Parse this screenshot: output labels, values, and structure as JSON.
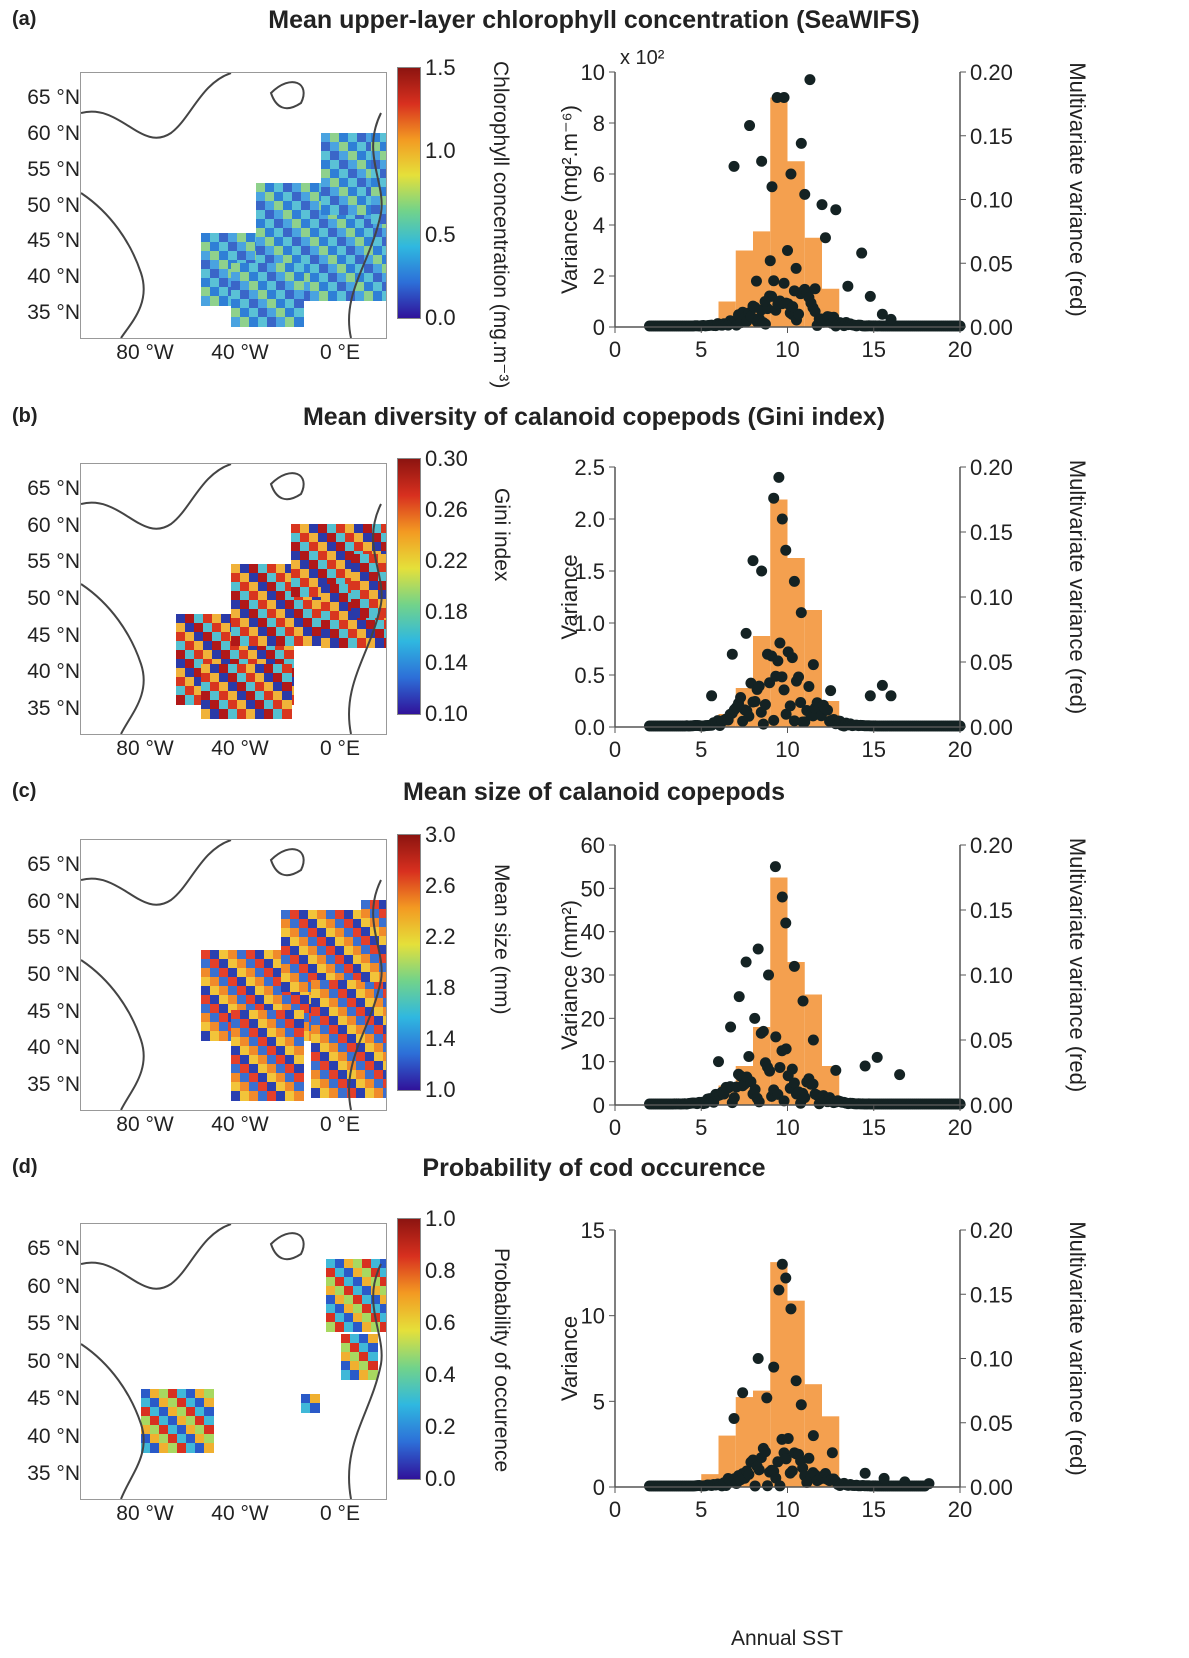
{
  "figure": {
    "x_caption": "Annual SST"
  },
  "colors": {
    "bar": "#f4a04f",
    "dot": "#142223",
    "axis": "#555555",
    "land": "#ffffff"
  },
  "panels": [
    {
      "letter": "(a)",
      "title": "Mean upper-layer chlorophyll concentration (SeaWIFS)",
      "map": {
        "lat_labels": [
          "65 °N",
          "60 °N",
          "55 °N",
          "50 °N",
          "45 °N",
          "40 °N",
          "35 °N"
        ],
        "lon_labels": [
          "80 °W",
          "40 °W",
          "0 °E"
        ],
        "colorbar": {
          "ticks": [
            "1.5",
            "1.0",
            "0.5",
            "0.0"
          ],
          "label": "Chlorophyll concentration (mg.m⁻³)"
        }
      }
    },
    {
      "letter": "(b)",
      "title": "Mean diversity of calanoid copepods (Gini index)",
      "map": {
        "lat_labels": [
          "65 °N",
          "60 °N",
          "55 °N",
          "50 °N",
          "45 °N",
          "40 °N",
          "35 °N"
        ],
        "lon_labels": [
          "80 °W",
          "40 °W",
          "0 °E"
        ],
        "colorbar": {
          "ticks": [
            "0.30",
            "0.26",
            "0.22",
            "0.18",
            "0.14",
            "0.10"
          ],
          "label": "Gini index"
        }
      }
    },
    {
      "letter": "(c)",
      "title": "Mean size of calanoid copepods",
      "map": {
        "lat_labels": [
          "65 °N",
          "60 °N",
          "55 °N",
          "50 °N",
          "45 °N",
          "40 °N",
          "35 °N"
        ],
        "lon_labels": [
          "80 °W",
          "40 °W",
          "0 °E"
        ],
        "colorbar": {
          "ticks": [
            "3.0",
            "2.6",
            "2.2",
            "1.8",
            "1.4",
            "1.0"
          ],
          "label": "Mean size (mm)"
        }
      }
    },
    {
      "letter": "(d)",
      "title": "Probability of cod occurence",
      "map": {
        "lat_labels": [
          "65 °N",
          "60 °N",
          "55 °N",
          "50 °N",
          "45 °N",
          "40 °N",
          "35 °N"
        ],
        "lon_labels": [
          "80 °W",
          "40 °W",
          "0 °E"
        ],
        "colorbar": {
          "ticks": [
            "1.0",
            "0.8",
            "0.6",
            "0.4",
            "0.2",
            "0.0"
          ],
          "label": "Probability of occurence"
        }
      }
    }
  ],
  "chart_data": [
    {
      "type": "bar",
      "panel": "(a)",
      "ylabel": "Variance (mg².m⁻⁶)",
      "y_multiplier": "x 10²",
      "y2label": "Multivariate variance (red)",
      "xlim": [
        0,
        20
      ],
      "ylim": [
        0,
        10
      ],
      "y2lim": [
        0,
        0.2
      ],
      "xticks": [
        "0",
        "5",
        "10",
        "15",
        "20"
      ],
      "yticks": [
        "0",
        "2",
        "4",
        "6",
        "8",
        "10"
      ],
      "y2ticks": [
        "0.00",
        "0.05",
        "0.10",
        "0.15",
        "0.20"
      ],
      "bins": [
        [
          6,
          7,
          0.02
        ],
        [
          7,
          8,
          0.06
        ],
        [
          8,
          9,
          0.075
        ],
        [
          9,
          10,
          0.18
        ],
        [
          10,
          11,
          0.13
        ],
        [
          11,
          12,
          0.07
        ],
        [
          12,
          13,
          0.03
        ]
      ],
      "dots": [
        [
          6.9,
          6.3
        ],
        [
          7.8,
          7.9
        ],
        [
          8.5,
          6.5
        ],
        [
          9.1,
          5.5
        ],
        [
          9.4,
          9.0
        ],
        [
          9.8,
          9.0
        ],
        [
          10.2,
          6.0
        ],
        [
          10.8,
          7.2
        ],
        [
          11.3,
          9.7
        ],
        [
          11.0,
          5.2
        ],
        [
          12.0,
          4.8
        ],
        [
          12.8,
          4.6
        ],
        [
          12.2,
          3.5
        ],
        [
          14.3,
          2.9
        ],
        [
          14.8,
          1.2
        ],
        [
          15.5,
          0.5
        ],
        [
          13.5,
          1.6
        ],
        [
          8.2,
          1.8
        ],
        [
          9.0,
          2.6
        ],
        [
          10.0,
          3.0
        ],
        [
          10.5,
          2.3
        ],
        [
          11.6,
          1.5
        ],
        [
          8.7,
          1.0
        ],
        [
          10.3,
          0.8
        ],
        [
          16.0,
          0.3
        ]
      ],
      "dot_band": {
        "x_from": 2,
        "x_to": 20,
        "peak_x": 9.8,
        "peak_y": 2.0
      }
    },
    {
      "type": "bar",
      "panel": "(b)",
      "ylabel": "Variance",
      "y2label": "Multivariate variance (red)",
      "xlim": [
        0,
        20
      ],
      "ylim": [
        0,
        2.5
      ],
      "y2lim": [
        0,
        0.2
      ],
      "xticks": [
        "0",
        "5",
        "10",
        "15",
        "20"
      ],
      "yticks": [
        "0.0",
        "0.5",
        "1.0",
        "1.5",
        "2.0",
        "2.5"
      ],
      "y2ticks": [
        "0.00",
        "0.05",
        "0.10",
        "0.15",
        "0.20"
      ],
      "bins": [
        [
          6,
          7,
          0.01
        ],
        [
          7,
          8,
          0.03
        ],
        [
          8,
          9,
          0.07
        ],
        [
          9,
          10,
          0.175
        ],
        [
          10,
          11,
          0.13
        ],
        [
          11,
          12,
          0.09
        ],
        [
          12,
          13,
          0.02
        ]
      ],
      "dots": [
        [
          9.5,
          2.4
        ],
        [
          9.2,
          2.2
        ],
        [
          9.7,
          2.0
        ],
        [
          8.0,
          1.6
        ],
        [
          8.5,
          1.5
        ],
        [
          10.4,
          1.4
        ],
        [
          10.8,
          1.1
        ],
        [
          7.6,
          0.9
        ],
        [
          6.8,
          0.7
        ],
        [
          11.5,
          0.6
        ],
        [
          15.5,
          0.4
        ],
        [
          14.8,
          0.3
        ],
        [
          16.0,
          0.3
        ],
        [
          12.5,
          0.35
        ],
        [
          5.6,
          0.3
        ],
        [
          9.9,
          1.7
        ]
      ],
      "dot_band": {
        "x_from": 2,
        "x_to": 20,
        "peak_x": 9.5,
        "peak_y": 0.8
      }
    },
    {
      "type": "bar",
      "panel": "(c)",
      "ylabel": "Variance (mm²)",
      "y2label": "Multivariate variance (red)",
      "xlim": [
        0,
        20
      ],
      "ylim": [
        0,
        60
      ],
      "y2lim": [
        0,
        0.2
      ],
      "xticks": [
        "0",
        "5",
        "10",
        "15",
        "20"
      ],
      "yticks": [
        "0",
        "10",
        "20",
        "30",
        "40",
        "50",
        "60"
      ],
      "y2ticks": [
        "0.00",
        "0.05",
        "0.10",
        "0.15",
        "0.20"
      ],
      "bins": [
        [
          5,
          6,
          0.005
        ],
        [
          6,
          7,
          0.015
        ],
        [
          7,
          8,
          0.03
        ],
        [
          8,
          9,
          0.06
        ],
        [
          9,
          10,
          0.175
        ],
        [
          10,
          11,
          0.11
        ],
        [
          11,
          12,
          0.085
        ],
        [
          12,
          13,
          0.03
        ]
      ],
      "dots": [
        [
          9.3,
          55
        ],
        [
          9.7,
          48
        ],
        [
          9.9,
          42
        ],
        [
          8.3,
          36
        ],
        [
          7.6,
          33
        ],
        [
          8.9,
          30
        ],
        [
          10.4,
          32
        ],
        [
          10.9,
          24
        ],
        [
          6.7,
          18
        ],
        [
          11.5,
          15
        ],
        [
          15.2,
          11
        ],
        [
          14.5,
          9
        ],
        [
          16.5,
          7
        ],
        [
          12.8,
          8
        ],
        [
          6.0,
          10
        ],
        [
          7.2,
          25
        ],
        [
          8.1,
          20
        ]
      ],
      "dot_band": {
        "x_from": 2,
        "x_to": 20,
        "peak_x": 9.0,
        "peak_y": 18
      }
    },
    {
      "type": "bar",
      "panel": "(d)",
      "ylabel": "Variance",
      "y2label": "Multivariate variance (red)",
      "xlim": [
        0,
        20
      ],
      "ylim": [
        0,
        15
      ],
      "y2lim": [
        0,
        0.2
      ],
      "xticks": [
        "0",
        "5",
        "10",
        "15",
        "20"
      ],
      "yticks": [
        "0",
        "5",
        "10",
        "15"
      ],
      "y2ticks": [
        "0.00",
        "0.05",
        "0.10",
        "0.15",
        "0.20"
      ],
      "bins": [
        [
          5,
          6,
          0.01
        ],
        [
          6,
          7,
          0.04
        ],
        [
          7,
          8,
          0.07
        ],
        [
          8,
          9,
          0.075
        ],
        [
          9,
          10,
          0.175
        ],
        [
          10,
          11,
          0.145
        ],
        [
          11,
          12,
          0.08
        ],
        [
          12,
          13,
          0.055
        ],
        [
          13,
          14,
          0.005
        ]
      ],
      "dots": [
        [
          9.7,
          13.0
        ],
        [
          9.9,
          12.2
        ],
        [
          9.5,
          11.5
        ],
        [
          10.2,
          10.4
        ],
        [
          8.3,
          7.5
        ],
        [
          9.2,
          7.0
        ],
        [
          10.5,
          6.2
        ],
        [
          7.4,
          5.5
        ],
        [
          10.8,
          4.8
        ],
        [
          6.9,
          4.0
        ],
        [
          11.5,
          3.0
        ],
        [
          12.6,
          2.0
        ],
        [
          14.5,
          0.8
        ],
        [
          15.6,
          0.5
        ],
        [
          16.8,
          0.3
        ],
        [
          18.2,
          0.2
        ],
        [
          8.8,
          5.2
        ]
      ],
      "dot_band": {
        "x_from": 2,
        "x_to": 18,
        "peak_x": 9.6,
        "peak_y": 3.0
      }
    }
  ]
}
